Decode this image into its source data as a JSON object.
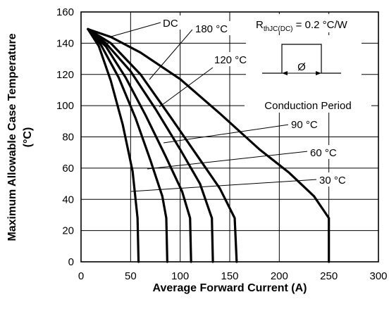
{
  "chart_data": {
    "type": "line",
    "xlabel": "Average Forward Current (A)",
    "ylabel_line1": "Maximum  Allowable Case Temperature",
    "ylabel_line2": "(°C)",
    "xlim": [
      0,
      300
    ],
    "ylim": [
      0,
      160
    ],
    "xticks": [
      0,
      50,
      100,
      150,
      200,
      250,
      300
    ],
    "yticks": [
      0,
      20,
      40,
      60,
      80,
      100,
      120,
      140,
      160
    ],
    "grid": true,
    "rth_label": "R",
    "rth_subscript": "thJC(DC)",
    "rth_value": " = 0.2 °C/W",
    "inset_symbol": "Ø",
    "inset_caption": "Conduction  Period",
    "series": [
      {
        "name": "DC",
        "points": [
          [
            7,
            149
          ],
          [
            30,
            144
          ],
          [
            60,
            134
          ],
          [
            100,
            117
          ],
          [
            140,
            95
          ],
          [
            180,
            72
          ],
          [
            210,
            57
          ],
          [
            235,
            42
          ],
          [
            250,
            28
          ],
          [
            250,
            0
          ]
        ]
      },
      {
        "name": "180 °C",
        "points": [
          [
            7,
            149
          ],
          [
            30,
            140
          ],
          [
            60,
            120
          ],
          [
            90,
            93
          ],
          [
            115,
            70
          ],
          [
            140,
            47
          ],
          [
            155,
            28
          ],
          [
            157,
            0
          ]
        ]
      },
      {
        "name": "120 °C",
        "points": [
          [
            7,
            149
          ],
          [
            25,
            140
          ],
          [
            50,
            122
          ],
          [
            75,
            98
          ],
          [
            100,
            72
          ],
          [
            120,
            50
          ],
          [
            132,
            28
          ],
          [
            133,
            0
          ]
        ]
      },
      {
        "name": "90 °C",
        "points": [
          [
            7,
            149
          ],
          [
            25,
            138
          ],
          [
            45,
            118
          ],
          [
            65,
            94
          ],
          [
            85,
            68
          ],
          [
            102,
            45
          ],
          [
            110,
            28
          ],
          [
            111,
            0
          ]
        ]
      },
      {
        "name": "60 °C",
        "points": [
          [
            7,
            149
          ],
          [
            20,
            139
          ],
          [
            38,
            118
          ],
          [
            55,
            92
          ],
          [
            70,
            65
          ],
          [
            82,
            42
          ],
          [
            86,
            28
          ],
          [
            87,
            0
          ]
        ]
      },
      {
        "name": "30 °C",
        "points": [
          [
            7,
            149
          ],
          [
            18,
            138
          ],
          [
            30,
            116
          ],
          [
            42,
            88
          ],
          [
            52,
            58
          ],
          [
            57,
            28
          ],
          [
            58,
            0
          ]
        ]
      }
    ],
    "labels": {
      "dc": "DC",
      "s180": "180 °C",
      "s120": "120 °C",
      "s90": "90 °C",
      "s60": "60 °C",
      "s30": "30 °C"
    }
  }
}
